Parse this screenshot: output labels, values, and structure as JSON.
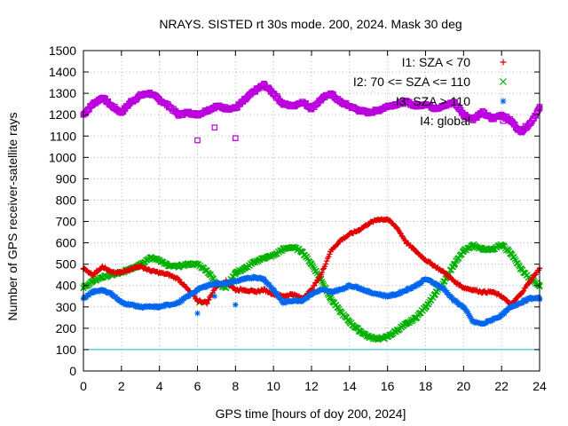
{
  "chart_data": {
    "type": "scatter",
    "title": "NRAYS. SISTED rt 30s mode. 200, 2024. Mask 30 deg",
    "xlabel": "GPS time [hours of doy 200, 2024]",
    "ylabel": "Number of GPS receiver-satellite rays",
    "xlim": [
      0,
      24
    ],
    "ylim": [
      0,
      1500
    ],
    "x_ticks": [
      0,
      2,
      4,
      6,
      8,
      10,
      12,
      14,
      16,
      18,
      20,
      22,
      24
    ],
    "y_ticks": [
      0,
      100,
      200,
      300,
      400,
      500,
      600,
      700,
      800,
      900,
      1000,
      1100,
      1200,
      1300,
      1400,
      1500
    ],
    "grid": true,
    "legend_position": "top-right",
    "threshold_line": {
      "y": 100,
      "color": "#00c8d0"
    },
    "series": [
      {
        "name": "I1: SZA < 70",
        "marker": "+",
        "color": "#e00000",
        "x": [
          0,
          0.5,
          1,
          1.5,
          2,
          2.5,
          3,
          3.5,
          4,
          4.5,
          5,
          5.5,
          6,
          6.5,
          7,
          7.5,
          8,
          8.5,
          9,
          9.5,
          10,
          10.5,
          11,
          11.5,
          12,
          12.5,
          13,
          13.5,
          14,
          14.5,
          15,
          15.5,
          16,
          16.5,
          17,
          17.5,
          18,
          18.5,
          19,
          19.5,
          20,
          20.5,
          21,
          21.5,
          22,
          22.5,
          23,
          23.5,
          24
        ],
        "y": [
          480,
          450,
          490,
          460,
          460,
          480,
          490,
          470,
          460,
          450,
          430,
          380,
          330,
          320,
          400,
          420,
          380,
          380,
          370,
          380,
          360,
          350,
          360,
          340,
          380,
          450,
          560,
          610,
          640,
          660,
          690,
          710,
          710,
          670,
          600,
          560,
          520,
          490,
          460,
          420,
          390,
          380,
          370,
          370,
          350,
          310,
          360,
          420,
          480
        ]
      },
      {
        "name": "I2: 70 <= SZA <= 110",
        "marker": "x",
        "color": "#00b000",
        "x": [
          0,
          0.5,
          1,
          1.5,
          2,
          2.5,
          3,
          3.5,
          4,
          4.5,
          5,
          5.5,
          6,
          6.5,
          7,
          7.5,
          8,
          8.5,
          9,
          9.5,
          10,
          10.5,
          11,
          11.5,
          12,
          12.5,
          13,
          13.5,
          14,
          14.5,
          15,
          15.5,
          16,
          16.5,
          17,
          17.5,
          18,
          18.5,
          19,
          19.5,
          20,
          20.5,
          21,
          21.5,
          22,
          22.5,
          23,
          23.5,
          24
        ],
        "y": [
          390,
          420,
          440,
          450,
          460,
          480,
          500,
          530,
          520,
          490,
          490,
          500,
          500,
          470,
          410,
          390,
          460,
          480,
          510,
          530,
          540,
          570,
          580,
          560,
          500,
          430,
          340,
          280,
          230,
          190,
          160,
          150,
          160,
          190,
          220,
          250,
          300,
          360,
          420,
          500,
          560,
          590,
          570,
          570,
          590,
          550,
          480,
          430,
          400
        ]
      },
      {
        "name": "I3: SZA > 110",
        "marker": "*",
        "color": "#0066ee",
        "x": [
          0,
          0.5,
          1,
          1.5,
          2,
          2.5,
          3,
          3.5,
          4,
          4.5,
          5,
          5.5,
          6,
          6.5,
          7,
          7.5,
          8,
          8.5,
          9,
          9.5,
          10,
          10.5,
          11,
          11.5,
          12,
          12.5,
          13,
          13.5,
          14,
          14.5,
          15,
          15.5,
          16,
          16.5,
          17,
          17.5,
          18,
          18.5,
          19,
          19.5,
          20,
          20.5,
          21,
          21.5,
          22,
          22.5,
          23,
          23.5,
          24
        ],
        "y": [
          340,
          370,
          380,
          360,
          320,
          310,
          300,
          300,
          300,
          310,
          320,
          350,
          380,
          400,
          410,
          410,
          420,
          430,
          440,
          430,
          380,
          320,
          330,
          330,
          360,
          380,
          370,
          380,
          400,
          390,
          370,
          360,
          350,
          360,
          380,
          400,
          430,
          410,
          380,
          330,
          300,
          230,
          220,
          240,
          260,
          300,
          320,
          340,
          340
        ]
      },
      {
        "name": "I4: global",
        "marker": "square",
        "color": "#bb00dd",
        "x": [
          0,
          0.5,
          1,
          1.5,
          2,
          2.5,
          3,
          3.5,
          4,
          4.5,
          5,
          5.5,
          6,
          6.5,
          7,
          7.5,
          8,
          8.5,
          9,
          9.5,
          10,
          10.5,
          11,
          11.5,
          12,
          12.5,
          13,
          13.5,
          14,
          14.5,
          15,
          15.5,
          16,
          16.5,
          17,
          17.5,
          18,
          18.5,
          19,
          19.5,
          20,
          20.5,
          21,
          21.5,
          22,
          22.5,
          23,
          23.5,
          24
        ],
        "y": [
          1200,
          1250,
          1280,
          1240,
          1210,
          1260,
          1290,
          1300,
          1270,
          1240,
          1200,
          1210,
          1200,
          1220,
          1240,
          1230,
          1230,
          1270,
          1310,
          1340,
          1300,
          1250,
          1240,
          1260,
          1230,
          1270,
          1300,
          1260,
          1240,
          1220,
          1210,
          1220,
          1240,
          1250,
          1260,
          1240,
          1250,
          1230,
          1240,
          1260,
          1200,
          1180,
          1210,
          1180,
          1200,
          1170,
          1120,
          1160,
          1230
        ]
      }
    ],
    "outliers": {
      "I4: global": {
        "x": [
          6,
          6.9,
          8
        ],
        "y": [
          1080,
          1140,
          1090
        ]
      },
      "I3: SZA > 110": {
        "x": [
          6,
          6.9,
          8
        ],
        "y": [
          270,
          350,
          310
        ]
      },
      "I2: 70 <= SZA <= 110": {
        "x": [
          6.1
        ],
        "y": [
          320
        ]
      }
    }
  }
}
